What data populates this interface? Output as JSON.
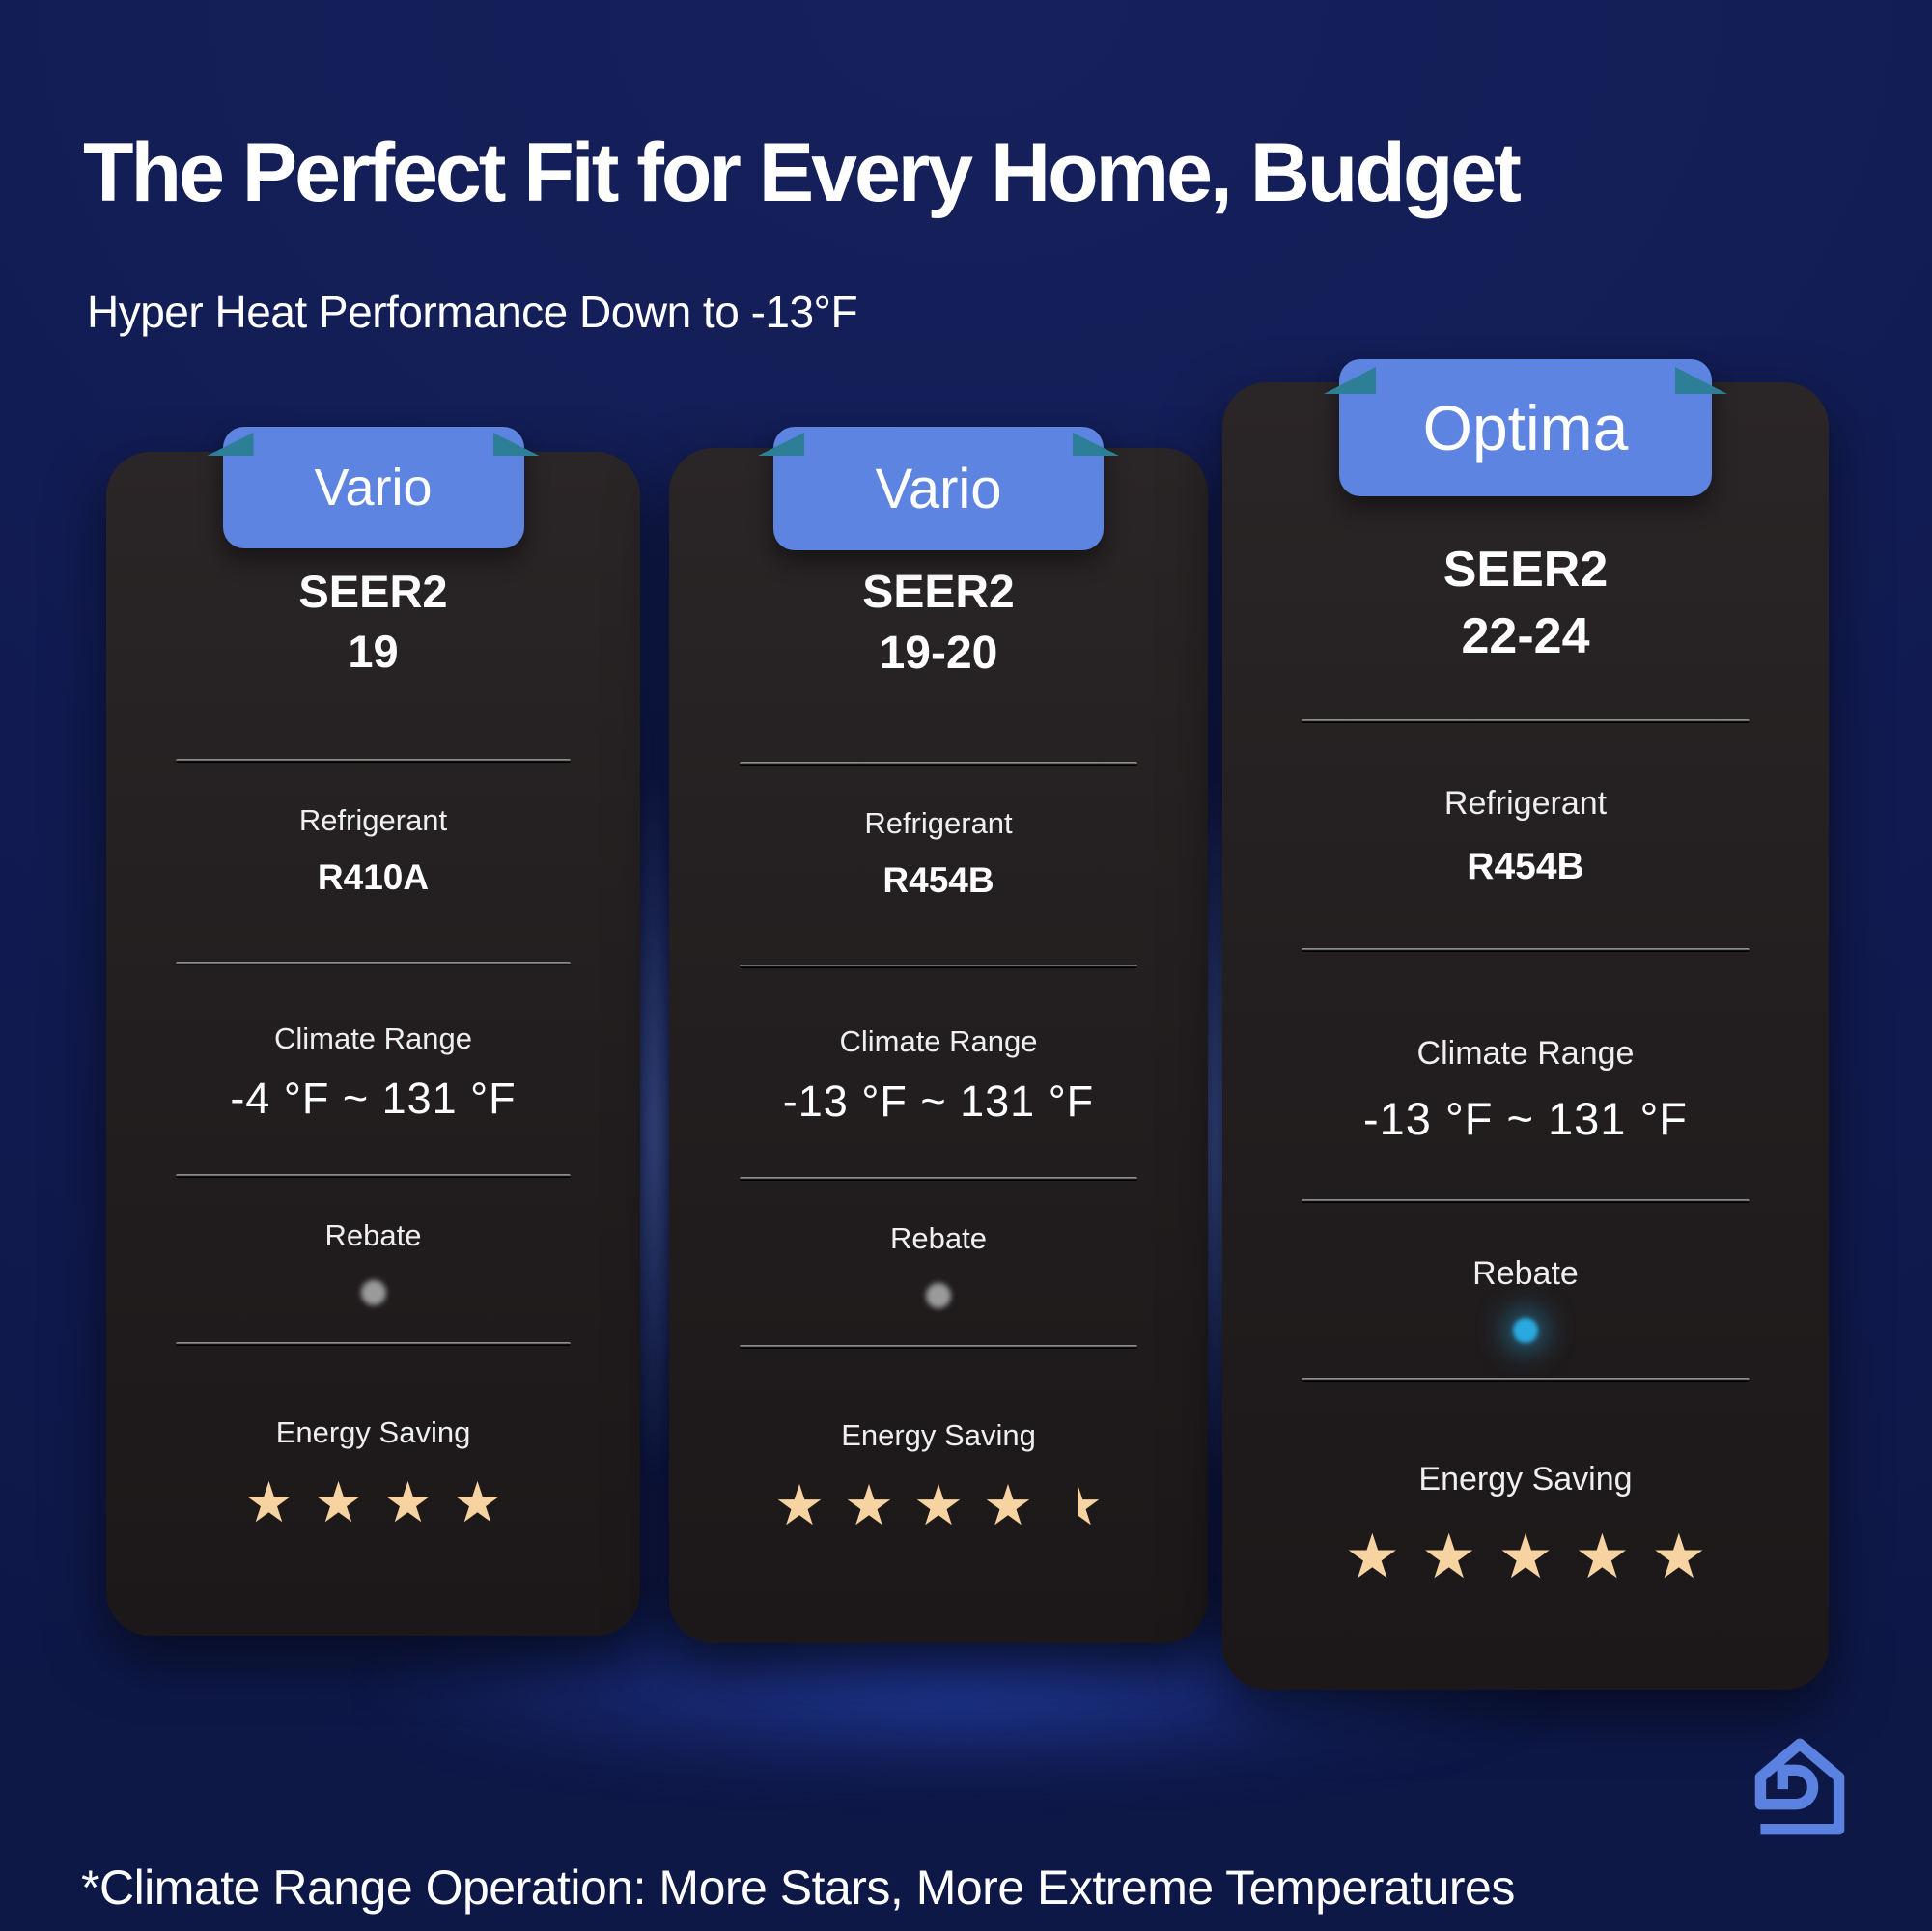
{
  "header": {
    "title": "The Perfect Fit for Every Home, Budget",
    "subtitle": "Hyper Heat Performance Down to -13°F"
  },
  "labels": {
    "refrigerant": "Refrigerant",
    "climate_range": "Climate Range",
    "rebate": "Rebate",
    "energy_saving": "Energy Saving"
  },
  "cards": [
    {
      "badge": "Vario",
      "seer_label": "SEER2",
      "seer_value": "19",
      "refrigerant": "R410A",
      "climate_range": "-4 °F ~ 131 °F",
      "rebate_dot": "#9a9a9a",
      "rebate_glow": false,
      "stars": 4
    },
    {
      "badge": "Vario",
      "seer_label": "SEER2",
      "seer_value": "19-20",
      "refrigerant": "R454B",
      "climate_range": "-13 °F ~ 131 °F",
      "rebate_dot": "#9a9a9a",
      "rebate_glow": false,
      "stars": 4.5
    },
    {
      "badge": "Optima",
      "seer_label": "SEER2",
      "seer_value": "22-24",
      "refrigerant": "R454B",
      "climate_range": "-13 °F ~ 131 °F",
      "rebate_dot": "#2aa9e0",
      "rebate_glow": true,
      "stars": 5
    }
  ],
  "footer": {
    "footnote": "*Climate Range Operation: More Stars, More Extreme Temperatures"
  },
  "icons": {
    "logo": "house-d-logo"
  },
  "colors": {
    "background": "#111b52",
    "card": "#231f20",
    "badge_blue": "#5c84e0",
    "teal": "#2c7f97",
    "star_gold": "#f6d3a0",
    "rebate_blue": "#2aa9e0",
    "rebate_gray": "#9a9a9a",
    "logo_blue": "#5b82e0"
  }
}
